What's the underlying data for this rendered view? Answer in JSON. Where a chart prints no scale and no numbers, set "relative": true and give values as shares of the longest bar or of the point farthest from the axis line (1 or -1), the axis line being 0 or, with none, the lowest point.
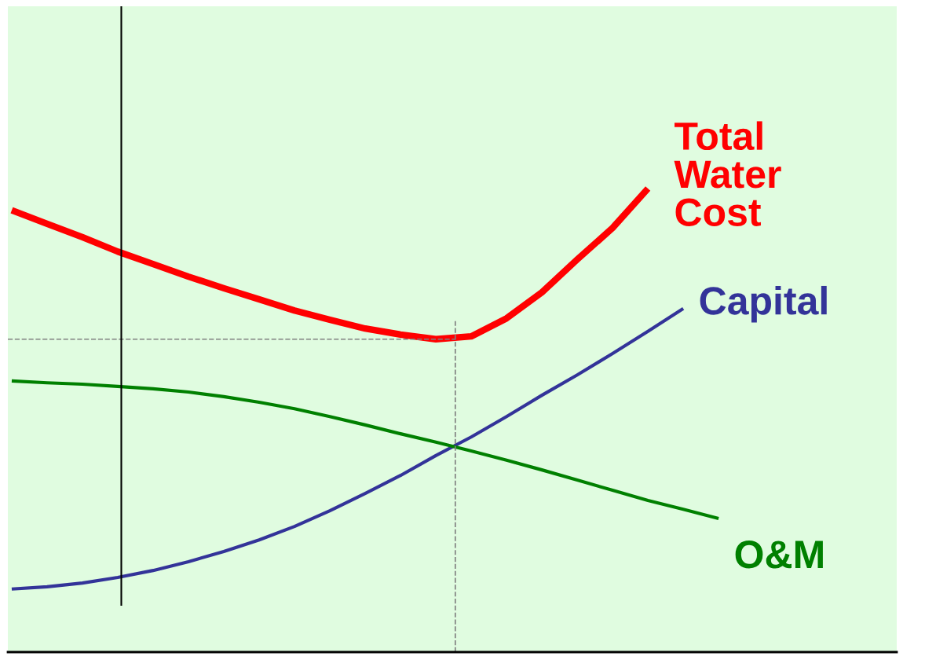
{
  "chart_data": {
    "type": "line",
    "relative": true,
    "categories": [
      null,
      null,
      null,
      null,
      null,
      null,
      null,
      null,
      null,
      null,
      null,
      null,
      null,
      null,
      null,
      null,
      null,
      null,
      null,
      null,
      null
    ],
    "series": [
      {
        "name": "Total\nWater\nCost",
        "color": "#ff0000",
        "values": [
          0.953,
          0.924,
          0.895,
          0.864,
          0.837,
          0.81,
          0.785,
          0.761,
          0.737,
          0.717,
          0.698,
          0.685,
          0.675,
          0.681,
          0.72,
          0.776,
          0.847,
          0.915,
          1.0,
          null,
          null
        ]
      },
      {
        "name": "Capital",
        "color": "#333399",
        "values": [
          0.136,
          0.141,
          0.149,
          0.161,
          0.176,
          0.195,
          0.217,
          0.242,
          0.271,
          0.305,
          0.342,
          0.381,
          0.424,
          0.464,
          0.508,
          0.554,
          0.598,
          0.644,
          0.692,
          0.741,
          null
        ]
      },
      {
        "name": "O&M",
        "color": "#008000",
        "values": [
          0.585,
          0.581,
          0.578,
          0.573,
          0.568,
          0.561,
          0.551,
          0.539,
          0.525,
          0.508,
          0.49,
          0.471,
          0.453,
          0.434,
          0.414,
          0.393,
          0.371,
          0.349,
          0.327,
          0.308,
          0.288
        ]
      }
    ],
    "ref_lines": [
      {
        "axis": "y",
        "value": 0.675,
        "color": "#808080",
        "line_style": "dashed"
      }
    ],
    "legend": false,
    "marker": "none",
    "line_style": "solid"
  }
}
